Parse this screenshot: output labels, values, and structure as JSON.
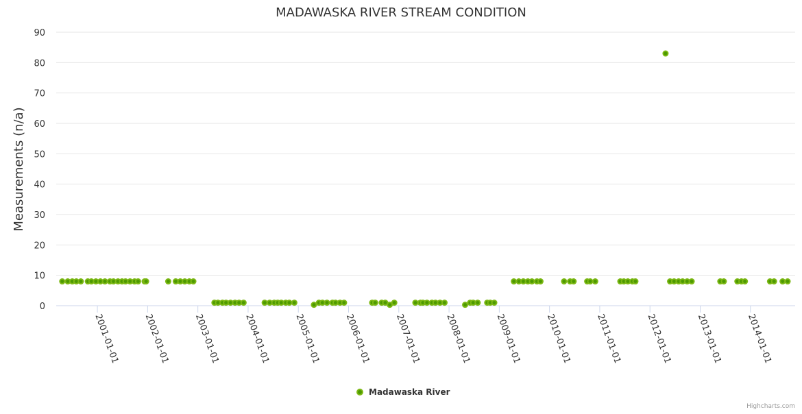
{
  "chart_data": {
    "type": "scatter",
    "title": "MADAWASKA RIVER STREAM CONDITION",
    "xlabel": "",
    "ylabel": "Measurements (n/a)",
    "ylim": [
      0,
      90
    ],
    "xlim_year": [
      2000.18,
      2014.89
    ],
    "yticks": [
      0,
      10,
      20,
      30,
      40,
      50,
      60,
      70,
      80,
      90
    ],
    "xticks": [
      {
        "year": 2001,
        "label": "2001-01-01"
      },
      {
        "year": 2002,
        "label": "2002-01-01"
      },
      {
        "year": 2003,
        "label": "2003-01-01"
      },
      {
        "year": 2004,
        "label": "2004-01-01"
      },
      {
        "year": 2005,
        "label": "2005-01-01"
      },
      {
        "year": 2006,
        "label": "2006-01-01"
      },
      {
        "year": 2007,
        "label": "2007-01-01"
      },
      {
        "year": 2008,
        "label": "2008-01-01"
      },
      {
        "year": 2009,
        "label": "2009-01-01"
      },
      {
        "year": 2010,
        "label": "2010-01-01"
      },
      {
        "year": 2011,
        "label": "2011-01-01"
      },
      {
        "year": 2012,
        "label": "2012-01-01"
      },
      {
        "year": 2013,
        "label": "2013-01-01"
      },
      {
        "year": 2014,
        "label": "2014-01-01"
      }
    ],
    "grid": true,
    "legend_position": "bottom-center",
    "series": [
      {
        "name": "Madawaska River",
        "color": "#7cb814",
        "fill": "#4d9a00",
        "points": [
          [
            2000.3,
            8
          ],
          [
            2000.41,
            8
          ],
          [
            2000.5,
            8
          ],
          [
            2000.58,
            8
          ],
          [
            2000.67,
            8
          ],
          [
            2000.81,
            8
          ],
          [
            2000.88,
            8
          ],
          [
            2000.97,
            8
          ],
          [
            2001.06,
            8
          ],
          [
            2001.15,
            8
          ],
          [
            2001.25,
            8
          ],
          [
            2001.32,
            8
          ],
          [
            2001.41,
            8
          ],
          [
            2001.49,
            8
          ],
          [
            2001.56,
            8
          ],
          [
            2001.65,
            8
          ],
          [
            2001.74,
            8
          ],
          [
            2001.81,
            8
          ],
          [
            2001.94,
            8
          ],
          [
            2001.97,
            8
          ],
          [
            2002.41,
            8
          ],
          [
            2002.56,
            8
          ],
          [
            2002.65,
            8
          ],
          [
            2002.74,
            8
          ],
          [
            2002.83,
            8
          ],
          [
            2002.91,
            8
          ],
          [
            2003.33,
            1
          ],
          [
            2003.4,
            1
          ],
          [
            2003.49,
            1
          ],
          [
            2003.56,
            1
          ],
          [
            2003.65,
            1
          ],
          [
            2003.74,
            1
          ],
          [
            2003.82,
            1
          ],
          [
            2003.91,
            1
          ],
          [
            2004.33,
            1
          ],
          [
            2004.43,
            1
          ],
          [
            2004.52,
            1
          ],
          [
            2004.59,
            1
          ],
          [
            2004.66,
            1
          ],
          [
            2004.75,
            1
          ],
          [
            2004.82,
            1
          ],
          [
            2004.92,
            1
          ],
          [
            2005.31,
            0.3
          ],
          [
            2005.41,
            1
          ],
          [
            2005.48,
            1
          ],
          [
            2005.57,
            1
          ],
          [
            2005.68,
            1
          ],
          [
            2005.74,
            1
          ],
          [
            2005.83,
            1
          ],
          [
            2005.91,
            1
          ],
          [
            2006.47,
            1
          ],
          [
            2006.53,
            1
          ],
          [
            2006.66,
            1
          ],
          [
            2006.73,
            1
          ],
          [
            2006.82,
            0.3
          ],
          [
            2006.91,
            1
          ],
          [
            2007.33,
            1
          ],
          [
            2007.43,
            1
          ],
          [
            2007.48,
            1
          ],
          [
            2007.56,
            1
          ],
          [
            2007.66,
            1
          ],
          [
            2007.73,
            1
          ],
          [
            2007.82,
            1
          ],
          [
            2007.91,
            1
          ],
          [
            2008.32,
            0.3
          ],
          [
            2008.42,
            1
          ],
          [
            2008.48,
            1
          ],
          [
            2008.57,
            1
          ],
          [
            2008.76,
            1
          ],
          [
            2008.82,
            1
          ],
          [
            2008.9,
            1
          ],
          [
            2009.29,
            8
          ],
          [
            2009.39,
            8
          ],
          [
            2009.48,
            8
          ],
          [
            2009.57,
            8
          ],
          [
            2009.65,
            8
          ],
          [
            2009.75,
            8
          ],
          [
            2009.82,
            8
          ],
          [
            2010.29,
            8
          ],
          [
            2010.41,
            8
          ],
          [
            2010.48,
            8
          ],
          [
            2010.75,
            8
          ],
          [
            2010.81,
            8
          ],
          [
            2010.91,
            8
          ],
          [
            2011.41,
            8
          ],
          [
            2011.48,
            8
          ],
          [
            2011.56,
            8
          ],
          [
            2011.65,
            8
          ],
          [
            2011.71,
            8
          ],
          [
            2012.31,
            83
          ],
          [
            2012.4,
            8
          ],
          [
            2012.48,
            8
          ],
          [
            2012.57,
            8
          ],
          [
            2012.65,
            8
          ],
          [
            2012.74,
            8
          ],
          [
            2012.83,
            8
          ],
          [
            2013.4,
            8
          ],
          [
            2013.47,
            8
          ],
          [
            2013.74,
            8
          ],
          [
            2013.82,
            8
          ],
          [
            2013.89,
            8
          ],
          [
            2014.39,
            8
          ],
          [
            2014.47,
            8
          ],
          [
            2014.64,
            8
          ],
          [
            2014.74,
            8
          ]
        ]
      }
    ],
    "credits": "Highcharts.com"
  }
}
